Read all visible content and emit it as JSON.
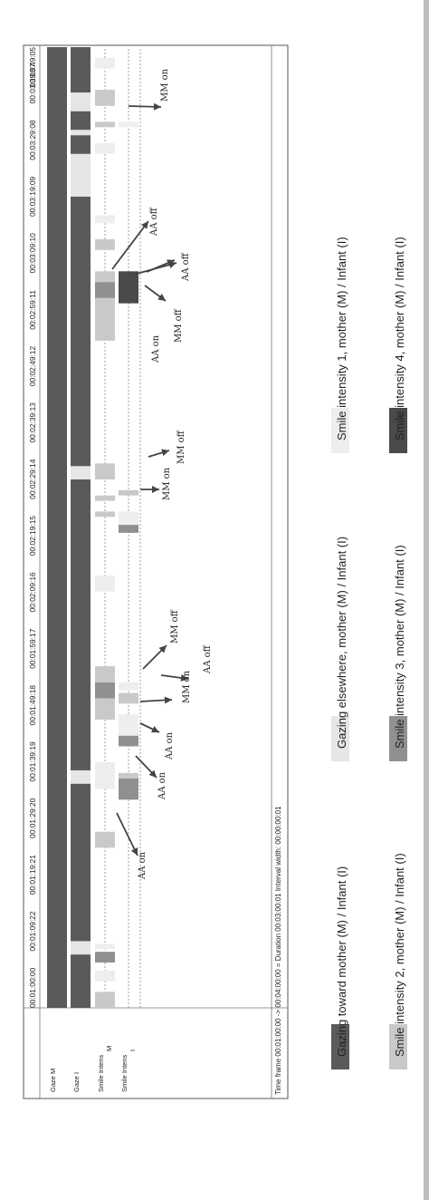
{
  "colors": {
    "gaze": "#5a5a5a",
    "elsewhere": "#e6e6e6",
    "s1": "#eeeeee",
    "s2": "#c9c9c9",
    "s3": "#909090",
    "s4": "#4a4a4a",
    "arrow": "#444444"
  },
  "chart_data": {
    "type": "timeline",
    "time_unit": "seconds",
    "x_range": [
      60,
      240
    ],
    "tick_labels": [
      "00:01:00:00",
      "00:01:09:22",
      "00:01:19:21",
      "00:01:29:20",
      "00:01:39:19",
      "00:01:49:18",
      "00:01:59:17",
      "00:02:09:16",
      "00:02:19:15",
      "00:02:29:14",
      "00:02:39:13",
      "00:02:49:12",
      "00:02:59:11",
      "00:03:09:10",
      "00:03:19:09",
      "00:03:29:08",
      "00:03:39:07",
      "00:03:49:05"
    ],
    "rows": [
      {
        "label": "Gaze M",
        "segments": [
          {
            "start": 60,
            "end": 240,
            "code": "gaze"
          }
        ]
      },
      {
        "label": "Gaze I",
        "segments": [
          {
            "start": 60,
            "end": 70,
            "code": "gaze"
          },
          {
            "start": 70,
            "end": 72.5,
            "code": "elsewhere"
          },
          {
            "start": 72.5,
            "end": 102,
            "code": "gaze"
          },
          {
            "start": 102,
            "end": 104.5,
            "code": "elsewhere"
          },
          {
            "start": 104.5,
            "end": 159,
            "code": "gaze"
          },
          {
            "start": 159,
            "end": 161.5,
            "code": "elsewhere"
          },
          {
            "start": 161.5,
            "end": 212,
            "code": "gaze"
          },
          {
            "start": 212,
            "end": 220,
            "code": "elsewhere"
          },
          {
            "start": 220,
            "end": 223.5,
            "code": "gaze"
          },
          {
            "start": 223.5,
            "end": 224.5,
            "code": "elsewhere"
          },
          {
            "start": 224.5,
            "end": 228,
            "code": "gaze"
          },
          {
            "start": 228,
            "end": 231.5,
            "code": "elsewhere"
          },
          {
            "start": 231.5,
            "end": 240,
            "code": "gaze"
          }
        ]
      },
      {
        "label": "Smile Intens M",
        "segments": [
          {
            "start": 60,
            "end": 63,
            "code": "s2"
          },
          {
            "start": 65,
            "end": 67,
            "code": "s1"
          },
          {
            "start": 68.5,
            "end": 70.5,
            "code": "s3"
          },
          {
            "start": 71,
            "end": 72,
            "code": "s1"
          },
          {
            "start": 90,
            "end": 93,
            "code": "s2"
          },
          {
            "start": 101,
            "end": 106,
            "code": "s1"
          },
          {
            "start": 114,
            "end": 118,
            "code": "s2"
          },
          {
            "start": 118,
            "end": 121,
            "code": "s3"
          },
          {
            "start": 121,
            "end": 124,
            "code": "s2"
          },
          {
            "start": 138,
            "end": 141,
            "code": "s1"
          },
          {
            "start": 152,
            "end": 153,
            "code": "s2"
          },
          {
            "start": 155,
            "end": 156,
            "code": "s2"
          },
          {
            "start": 159,
            "end": 162,
            "code": "s2"
          },
          {
            "start": 185,
            "end": 193,
            "code": "s2"
          },
          {
            "start": 193,
            "end": 196,
            "code": "s3"
          },
          {
            "start": 196,
            "end": 198,
            "code": "s2"
          },
          {
            "start": 202,
            "end": 204,
            "code": "s2"
          },
          {
            "start": 207,
            "end": 208.5,
            "code": "s1"
          },
          {
            "start": 220,
            "end": 222,
            "code": "s1"
          },
          {
            "start": 225,
            "end": 226,
            "code": "s2"
          },
          {
            "start": 229,
            "end": 232,
            "code": "s2"
          },
          {
            "start": 236,
            "end": 238,
            "code": "s1"
          }
        ]
      },
      {
        "label": "Smile Intens I",
        "segments": [
          {
            "start": 99,
            "end": 103,
            "code": "s3"
          },
          {
            "start": 103,
            "end": 104,
            "code": "s2"
          },
          {
            "start": 109,
            "end": 111,
            "code": "s3"
          },
          {
            "start": 111,
            "end": 115,
            "code": "s1"
          },
          {
            "start": 117,
            "end": 119,
            "code": "s2"
          },
          {
            "start": 119.5,
            "end": 121,
            "code": "s1"
          },
          {
            "start": 149,
            "end": 150.5,
            "code": "s3"
          },
          {
            "start": 150.5,
            "end": 153,
            "code": "s1"
          },
          {
            "start": 156,
            "end": 157,
            "code": "s2"
          },
          {
            "start": 192,
            "end": 198,
            "code": "s4"
          },
          {
            "start": 225,
            "end": 226,
            "code": "s1"
          }
        ]
      }
    ],
    "annotations": [
      {
        "text": "AA on",
        "t": 99.5
      },
      {
        "text": "AA on",
        "t": 108.5
      },
      {
        "text": "AA on",
        "t": 113.5
      },
      {
        "text": "MM on",
        "t": 116.2
      },
      {
        "text": "AA off",
        "t": 116
      },
      {
        "text": "MM off",
        "t": 122.5
      },
      {
        "text": "MM on",
        "t": 152.7
      },
      {
        "text": "MM off",
        "t": 154.5
      },
      {
        "text": "AA on",
        "t": 191.8
      },
      {
        "text": "MM off",
        "t": 194
      },
      {
        "text": "AA off",
        "t": 199.5
      },
      {
        "text": "AA off",
        "t": 205
      },
      {
        "text": "MM on",
        "t": 225.5
      }
    ],
    "footer": "Time frame 00:01:00:00 -> 00:04:00:00 = Duration 00:03:00:01   Interval width: 00:00:00:01",
    "legend": [
      {
        "label": "Gazing  toward  mother  (M)  /  Infant  (I)",
        "code": "gaze"
      },
      {
        "label": "Smile intensity 2, mother (M) / Infant (I)",
        "code": "s2"
      },
      {
        "label": "Gazing  elsewhere,  mother  (M)  /  Infant  (I)",
        "code": "elsewhere"
      },
      {
        "label": "Smile intensity 3, mother (M) / Infant (I)",
        "code": "s3"
      },
      {
        "label": "Smile intensity 1, mother (M) / Infant (I)",
        "code": "s1"
      },
      {
        "label": "Smile intensity 4, mother (M) / Infant (I)",
        "code": "s4"
      }
    ]
  }
}
